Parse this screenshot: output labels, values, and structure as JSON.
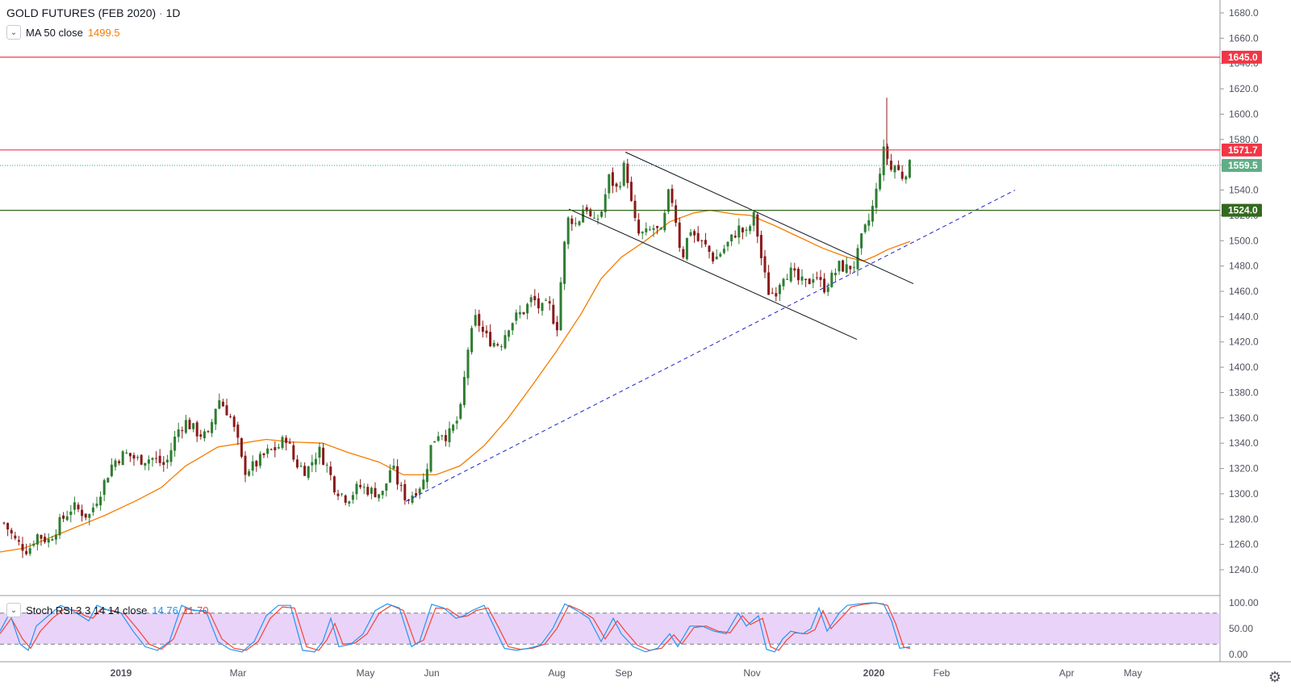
{
  "header": {
    "title": "GOLD FUTURES (FEB 2020)",
    "separator": "·",
    "interval": "1D"
  },
  "legend": {
    "ma_label": "MA 50 close",
    "ma_value": "1499.5",
    "stoch_label": "Stoch RSI 3 3 14 14 close",
    "stoch_k": "14.76",
    "stoch_d": "11.70"
  },
  "colors": {
    "up": "#2e7d32",
    "down": "#8b1a1a",
    "ma": "#f57c00",
    "resistance": "#f23645",
    "support": "#33691e",
    "trendline": "#1e22cc",
    "stoch_k": "#2196f3",
    "stoch_d": "#f44336",
    "stoch_band": "#e1c4f7"
  },
  "chart_data": [
    {
      "type": "candlestick",
      "title": "GOLD FUTURES (FEB 2020) · 1D",
      "y_axis_ticks": [
        1240,
        1260,
        1280,
        1300,
        1320,
        1340,
        1360,
        1380,
        1400,
        1420,
        1440,
        1460,
        1480,
        1500,
        1520,
        1540,
        1560,
        1580,
        1600,
        1620,
        1640,
        1660,
        1680
      ],
      "ylim": [
        1230,
        1690
      ],
      "x_axis_labels": [
        "2019",
        "Mar",
        "May",
        "Jun",
        "Aug",
        "Sep",
        "Nov",
        "2020",
        "Feb",
        "Apr",
        "May"
      ],
      "price_levels": [
        {
          "value": 1645.0,
          "label": "1645.0",
          "style": "resistance"
        },
        {
          "value": 1571.7,
          "label": "1571.7",
          "style": "resistance"
        },
        {
          "value": 1559.5,
          "label": "1559.5",
          "style": "last-price"
        },
        {
          "value": 1524.0,
          "label": "1524.0",
          "style": "support"
        }
      ],
      "moving_average": {
        "name": "MA 50 close",
        "last_value": 1499.5,
        "points": [
          [
            0,
            1254
          ],
          [
            30,
            1257
          ],
          [
            80,
            1270
          ],
          [
            130,
            1283
          ],
          [
            170,
            1295
          ],
          [
            200,
            1305
          ],
          [
            230,
            1322
          ],
          [
            270,
            1337
          ],
          [
            300,
            1340
          ],
          [
            330,
            1343
          ],
          [
            360,
            1341
          ],
          [
            400,
            1340
          ],
          [
            430,
            1333
          ],
          [
            470,
            1325
          ],
          [
            500,
            1315
          ],
          [
            540,
            1315
          ],
          [
            570,
            1322
          ],
          [
            600,
            1338
          ],
          [
            630,
            1360
          ],
          [
            660,
            1386
          ],
          [
            690,
            1413
          ],
          [
            720,
            1442
          ],
          [
            745,
            1470
          ],
          [
            770,
            1487
          ],
          [
            800,
            1500
          ],
          [
            830,
            1515
          ],
          [
            860,
            1522
          ],
          [
            880,
            1524
          ],
          [
            910,
            1521
          ],
          [
            930,
            1520
          ],
          [
            960,
            1512
          ],
          [
            990,
            1503
          ],
          [
            1020,
            1494
          ],
          [
            1050,
            1487
          ],
          [
            1070,
            1484
          ],
          [
            1085,
            1488
          ],
          [
            1100,
            1493
          ],
          [
            1128,
            1499.5
          ]
        ]
      },
      "candles_path": [
        [
          5,
          1277
        ],
        [
          20,
          1262
        ],
        [
          35,
          1255
        ],
        [
          45,
          1268
        ],
        [
          60,
          1263
        ],
        [
          75,
          1278
        ],
        [
          90,
          1290
        ],
        [
          110,
          1282
        ],
        [
          125,
          1303
        ],
        [
          140,
          1325
        ],
        [
          155,
          1332
        ],
        [
          170,
          1327
        ],
        [
          190,
          1328
        ],
        [
          205,
          1322
        ],
        [
          220,
          1350
        ],
        [
          230,
          1357
        ],
        [
          245,
          1348
        ],
        [
          258,
          1345
        ],
        [
          270,
          1376
        ],
        [
          285,
          1362
        ],
        [
          295,
          1340
        ],
        [
          302,
          1318
        ],
        [
          315,
          1322
        ],
        [
          330,
          1332
        ],
        [
          345,
          1337
        ],
        [
          355,
          1345
        ],
        [
          365,
          1325
        ],
        [
          380,
          1318
        ],
        [
          395,
          1335
        ],
        [
          405,
          1322
        ],
        [
          415,
          1305
        ],
        [
          430,
          1296
        ],
        [
          445,
          1306
        ],
        [
          460,
          1302
        ],
        [
          475,
          1300
        ],
        [
          485,
          1323
        ],
        [
          495,
          1305
        ],
        [
          505,
          1295
        ],
        [
          515,
          1303
        ],
        [
          525,
          1310
        ],
        [
          535,
          1340
        ],
        [
          545,
          1350
        ],
        [
          555,
          1345
        ],
        [
          570,
          1362
        ],
        [
          580,
          1415
        ],
        [
          590,
          1440
        ],
        [
          600,
          1425
        ],
        [
          610,
          1420
        ],
        [
          620,
          1418
        ],
        [
          630,
          1433
        ],
        [
          640,
          1440
        ],
        [
          650,
          1445
        ],
        [
          660,
          1455
        ],
        [
          670,
          1445
        ],
        [
          680,
          1450
        ],
        [
          690,
          1430
        ],
        [
          698,
          1490
        ],
        [
          705,
          1520
        ],
        [
          715,
          1512
        ],
        [
          725,
          1530
        ],
        [
          735,
          1512
        ],
        [
          745,
          1522
        ],
        [
          755,
          1550
        ],
        [
          765,
          1540
        ],
        [
          775,
          1562
        ],
        [
          782,
          1530
        ],
        [
          790,
          1505
        ],
        [
          800,
          1505
        ],
        [
          810,
          1510
        ],
        [
          820,
          1505
        ],
        [
          830,
          1542
        ],
        [
          838,
          1515
        ],
        [
          845,
          1485
        ],
        [
          855,
          1510
        ],
        [
          865,
          1500
        ],
        [
          875,
          1495
        ],
        [
          885,
          1485
        ],
        [
          895,
          1492
        ],
        [
          905,
          1500
        ],
        [
          915,
          1510
        ],
        [
          925,
          1505
        ],
        [
          935,
          1520
        ],
        [
          945,
          1480
        ],
        [
          952,
          1460
        ],
        [
          960,
          1458
        ],
        [
          970,
          1474
        ],
        [
          980,
          1475
        ],
        [
          990,
          1468
        ],
        [
          1000,
          1465
        ],
        [
          1010,
          1475
        ],
        [
          1020,
          1462
        ],
        [
          1030,
          1470
        ],
        [
          1040,
          1480
        ],
        [
          1050,
          1478
        ],
        [
          1060,
          1482
        ],
        [
          1068,
          1502
        ],
        [
          1078,
          1518
        ],
        [
          1085,
          1535
        ],
        [
          1092,
          1562
        ],
        [
          1097,
          1575
        ],
        [
          1103,
          1555
        ],
        [
          1110,
          1560
        ],
        [
          1117,
          1550
        ],
        [
          1122,
          1555
        ],
        [
          1128,
          1559.5
        ]
      ],
      "trendlines": [
        {
          "name": "channel-upper",
          "style": "solid",
          "from": [
            775,
            1570
          ],
          "to": [
            1132,
            1466
          ]
        },
        {
          "name": "channel-lower",
          "style": "solid",
          "from": [
            705,
            1525
          ],
          "to": [
            1062,
            1422
          ]
        },
        {
          "name": "rising-support",
          "style": "dashed",
          "from": [
            503,
            1294
          ],
          "to": [
            1258,
            1540
          ]
        }
      ]
    },
    {
      "type": "line",
      "title": "Stoch RSI 3 3 14 14 close",
      "y_axis_ticks": [
        "100.00",
        "50.00",
        "0.00"
      ],
      "ylim": [
        0,
        100
      ],
      "band": [
        20,
        80
      ],
      "series": [
        {
          "name": "K",
          "last_value": 14.76
        },
        {
          "name": "D",
          "last_value": 11.7
        }
      ],
      "k_points": [
        [
          0,
          45
        ],
        [
          12,
          80
        ],
        [
          25,
          20
        ],
        [
          35,
          8
        ],
        [
          45,
          55
        ],
        [
          60,
          75
        ],
        [
          75,
          95
        ],
        [
          90,
          85
        ],
        [
          100,
          75
        ],
        [
          110,
          65
        ],
        [
          120,
          95
        ],
        [
          135,
          85
        ],
        [
          150,
          80
        ],
        [
          165,
          45
        ],
        [
          180,
          15
        ],
        [
          195,
          8
        ],
        [
          210,
          25
        ],
        [
          225,
          95
        ],
        [
          240,
          85
        ],
        [
          255,
          85
        ],
        [
          270,
          25
        ],
        [
          285,
          10
        ],
        [
          300,
          5
        ],
        [
          315,
          25
        ],
        [
          330,
          75
        ],
        [
          345,
          95
        ],
        [
          360,
          95
        ],
        [
          375,
          8
        ],
        [
          390,
          5
        ],
        [
          400,
          25
        ],
        [
          410,
          70
        ],
        [
          420,
          15
        ],
        [
          435,
          20
        ],
        [
          450,
          40
        ],
        [
          465,
          85
        ],
        [
          480,
          98
        ],
        [
          495,
          90
        ],
        [
          510,
          15
        ],
        [
          520,
          25
        ],
        [
          535,
          97
        ],
        [
          550,
          90
        ],
        [
          565,
          70
        ],
        [
          575,
          75
        ],
        [
          585,
          85
        ],
        [
          600,
          95
        ],
        [
          612,
          55
        ],
        [
          625,
          12
        ],
        [
          640,
          8
        ],
        [
          655,
          12
        ],
        [
          670,
          18
        ],
        [
          685,
          50
        ],
        [
          700,
          98
        ],
        [
          715,
          85
        ],
        [
          730,
          70
        ],
        [
          745,
          25
        ],
        [
          760,
          70
        ],
        [
          770,
          40
        ],
        [
          785,
          15
        ],
        [
          800,
          5
        ],
        [
          815,
          12
        ],
        [
          830,
          40
        ],
        [
          840,
          15
        ],
        [
          855,
          55
        ],
        [
          870,
          55
        ],
        [
          885,
          45
        ],
        [
          900,
          40
        ],
        [
          915,
          80
        ],
        [
          925,
          55
        ],
        [
          940,
          75
        ],
        [
          950,
          10
        ],
        [
          960,
          5
        ],
        [
          970,
          30
        ],
        [
          980,
          45
        ],
        [
          995,
          40
        ],
        [
          1005,
          50
        ],
        [
          1015,
          90
        ],
        [
          1025,
          45
        ],
        [
          1040,
          80
        ],
        [
          1050,
          95
        ],
        [
          1065,
          98
        ],
        [
          1080,
          100
        ],
        [
          1095,
          98
        ],
        [
          1105,
          65
        ],
        [
          1115,
          12
        ],
        [
          1128,
          14.76
        ]
      ],
      "d_points": [
        [
          0,
          40
        ],
        [
          14,
          70
        ],
        [
          28,
          30
        ],
        [
          38,
          12
        ],
        [
          50,
          45
        ],
        [
          65,
          70
        ],
        [
          80,
          88
        ],
        [
          95,
          85
        ],
        [
          105,
          75
        ],
        [
          115,
          70
        ],
        [
          125,
          88
        ],
        [
          140,
          85
        ],
        [
          155,
          78
        ],
        [
          170,
          50
        ],
        [
          185,
          20
        ],
        [
          200,
          10
        ],
        [
          215,
          30
        ],
        [
          230,
          88
        ],
        [
          245,
          85
        ],
        [
          260,
          80
        ],
        [
          275,
          30
        ],
        [
          290,
          12
        ],
        [
          305,
          8
        ],
        [
          320,
          25
        ],
        [
          335,
          70
        ],
        [
          350,
          92
        ],
        [
          365,
          90
        ],
        [
          380,
          15
        ],
        [
          395,
          8
        ],
        [
          405,
          28
        ],
        [
          415,
          60
        ],
        [
          425,
          20
        ],
        [
          440,
          22
        ],
        [
          455,
          40
        ],
        [
          470,
          80
        ],
        [
          485,
          95
        ],
        [
          500,
          85
        ],
        [
          515,
          20
        ],
        [
          525,
          28
        ],
        [
          540,
          90
        ],
        [
          555,
          88
        ],
        [
          570,
          72
        ],
        [
          580,
          75
        ],
        [
          590,
          85
        ],
        [
          605,
          90
        ],
        [
          617,
          55
        ],
        [
          630,
          15
        ],
        [
          645,
          10
        ],
        [
          660,
          12
        ],
        [
          675,
          20
        ],
        [
          690,
          50
        ],
        [
          705,
          95
        ],
        [
          720,
          85
        ],
        [
          735,
          70
        ],
        [
          750,
          30
        ],
        [
          765,
          65
        ],
        [
          775,
          45
        ],
        [
          790,
          18
        ],
        [
          805,
          8
        ],
        [
          820,
          12
        ],
        [
          835,
          38
        ],
        [
          845,
          20
        ],
        [
          860,
          52
        ],
        [
          875,
          55
        ],
        [
          890,
          45
        ],
        [
          905,
          42
        ],
        [
          920,
          75
        ],
        [
          930,
          58
        ],
        [
          945,
          70
        ],
        [
          955,
          15
        ],
        [
          965,
          8
        ],
        [
          975,
          28
        ],
        [
          985,
          42
        ],
        [
          1000,
          40
        ],
        [
          1010,
          48
        ],
        [
          1020,
          85
        ],
        [
          1030,
          50
        ],
        [
          1045,
          75
        ],
        [
          1055,
          92
        ],
        [
          1070,
          97
        ],
        [
          1085,
          100
        ],
        [
          1100,
          95
        ],
        [
          1110,
          60
        ],
        [
          1120,
          14
        ],
        [
          1128,
          11.7
        ]
      ]
    }
  ]
}
